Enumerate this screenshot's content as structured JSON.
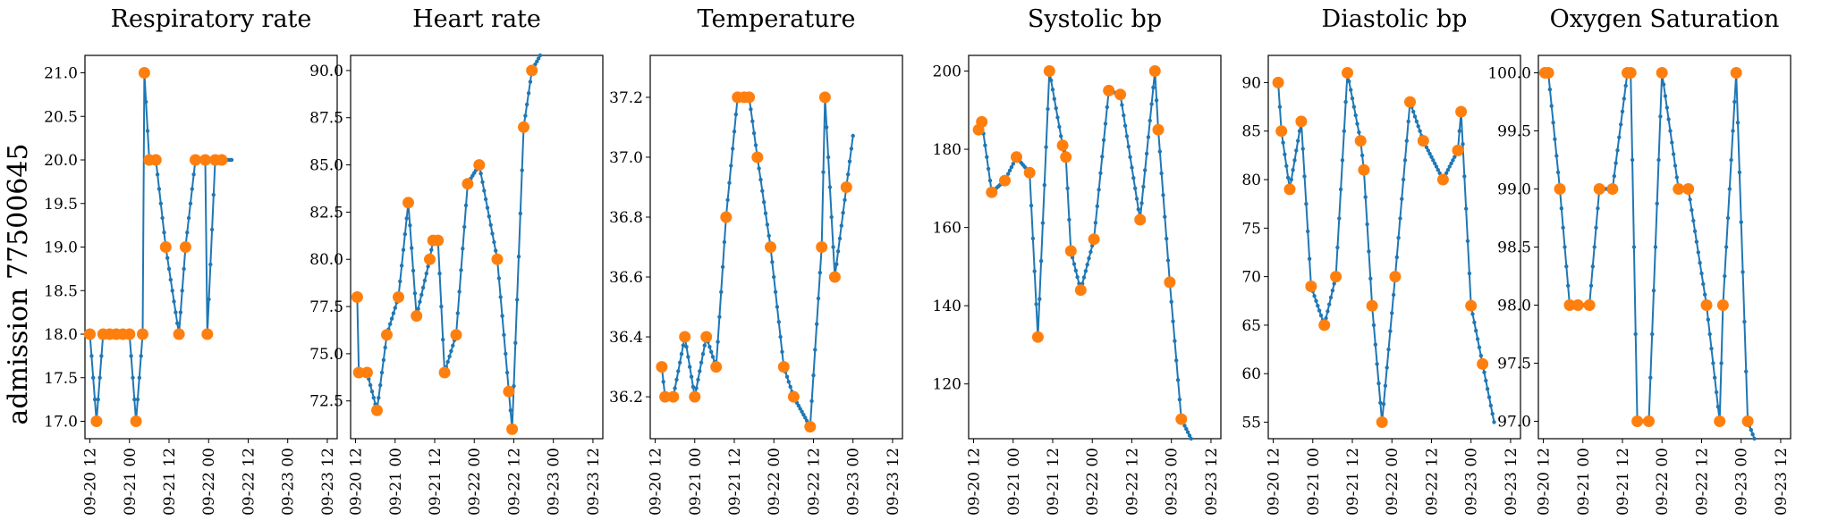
{
  "figure": {
    "row_label": "admission 77500645"
  },
  "style": {
    "line_color": "#1f77b4",
    "marker_color": "#ff7f0e"
  },
  "chart_data": [
    {
      "type": "line",
      "title": "Respiratory rate",
      "x_tick_labels": [
        "09-20 12",
        "09-21 00",
        "09-21 12",
        "09-22 00",
        "09-22 12",
        "09-23 00",
        "09-23 12"
      ],
      "x_range_hours": [
        -1.5,
        75
      ],
      "ylim": [
        16.8,
        21.2
      ],
      "y_ticks": [
        17.0,
        17.5,
        18.0,
        18.5,
        19.0,
        19.5,
        20.0,
        20.5,
        21.0
      ],
      "y_tick_labels": [
        "17.0",
        "17.5",
        "18.0",
        "18.5",
        "19.0",
        "19.5",
        "20.0",
        "20.5",
        "21.0"
      ],
      "observations": [
        [
          0,
          18
        ],
        [
          2,
          17
        ],
        [
          4,
          18
        ],
        [
          6,
          18
        ],
        [
          8,
          18
        ],
        [
          10,
          18
        ],
        [
          12,
          18
        ],
        [
          14,
          17
        ],
        [
          16,
          18
        ],
        [
          16.5,
          21
        ],
        [
          18,
          20
        ],
        [
          20,
          20
        ],
        [
          23,
          19
        ],
        [
          27,
          18
        ],
        [
          29,
          19
        ],
        [
          32,
          20
        ],
        [
          35,
          20
        ],
        [
          35.6,
          18
        ],
        [
          38,
          20
        ],
        [
          40,
          20
        ]
      ],
      "line_end_hour": 43
    },
    {
      "type": "line",
      "title": "Heart rate",
      "x_tick_labels": [
        "09-20 12",
        "09-21 00",
        "09-21 12",
        "09-22 00",
        "09-22 12",
        "09-23 00",
        "09-23 12"
      ],
      "x_range_hours": [
        -1.5,
        75
      ],
      "ylim": [
        70.5,
        90.8
      ],
      "y_ticks": [
        72.5,
        75.0,
        77.5,
        80.0,
        82.5,
        85.0,
        87.5,
        90.0
      ],
      "y_tick_labels": [
        "72.5",
        "75.0",
        "77.5",
        "80.0",
        "82.5",
        "85.0",
        "87.5",
        "90.0"
      ],
      "observations": [
        [
          0.5,
          78
        ],
        [
          1,
          74
        ],
        [
          3.5,
          74
        ],
        [
          6.5,
          72
        ],
        [
          9.5,
          76
        ],
        [
          13,
          78
        ],
        [
          16,
          83
        ],
        [
          18.5,
          77
        ],
        [
          22.5,
          80
        ],
        [
          23.5,
          81
        ],
        [
          25,
          81
        ],
        [
          27,
          74
        ],
        [
          30.5,
          76
        ],
        [
          34,
          84
        ],
        [
          37.5,
          85
        ],
        [
          43,
          80
        ],
        [
          46.5,
          73
        ],
        [
          47.5,
          71
        ],
        [
          51,
          87
        ],
        [
          53.5,
          90
        ]
      ],
      "line_end_hour": 56
    },
    {
      "type": "line",
      "title": "Temperature",
      "x_tick_labels": [
        "09-20 12",
        "09-21 00",
        "09-21 12",
        "09-22 00",
        "09-22 12",
        "09-23 00",
        "09-23 12"
      ],
      "x_range_hours": [
        -1.5,
        75
      ],
      "ylim": [
        36.06,
        37.34
      ],
      "y_ticks": [
        36.2,
        36.4,
        36.6,
        36.8,
        37.0,
        37.2
      ],
      "y_tick_labels": [
        "36.2",
        "36.4",
        "36.6",
        "36.8",
        "37.0",
        "37.2"
      ],
      "observations": [
        [
          2,
          36.3
        ],
        [
          3,
          36.2
        ],
        [
          5.5,
          36.2
        ],
        [
          9,
          36.4
        ],
        [
          12,
          36.2
        ],
        [
          15.5,
          36.4
        ],
        [
          18.5,
          36.3
        ],
        [
          21.5,
          36.8
        ],
        [
          25,
          37.2
        ],
        [
          27,
          37.2
        ],
        [
          28.5,
          37.2
        ],
        [
          31,
          37.0
        ],
        [
          35,
          36.7
        ],
        [
          39,
          36.3
        ],
        [
          42,
          36.2
        ],
        [
          47,
          36.1
        ],
        [
          50.5,
          36.7
        ],
        [
          51.5,
          37.2
        ],
        [
          54.5,
          36.6
        ],
        [
          58,
          36.9
        ]
      ],
      "line_end_hour": 60
    },
    {
      "type": "line",
      "title": "Systolic bp",
      "x_tick_labels": [
        "09-20 12",
        "09-21 00",
        "09-21 12",
        "09-22 00",
        "09-22 12",
        "09-23 00",
        "09-23 12"
      ],
      "x_range_hours": [
        -1.5,
        75
      ],
      "ylim": [
        106,
        204
      ],
      "y_ticks": [
        120,
        140,
        160,
        180,
        200
      ],
      "y_tick_labels": [
        "120",
        "140",
        "160",
        "180",
        "200"
      ],
      "observations": [
        [
          1.5,
          185
        ],
        [
          2.5,
          187
        ],
        [
          5.5,
          169
        ],
        [
          9.5,
          172
        ],
        [
          13,
          178
        ],
        [
          17,
          174
        ],
        [
          19.5,
          132
        ],
        [
          23,
          200
        ],
        [
          27,
          181
        ],
        [
          28,
          178
        ],
        [
          29.5,
          154
        ],
        [
          32.5,
          144
        ],
        [
          36.5,
          157
        ],
        [
          41,
          195
        ],
        [
          44.5,
          194
        ],
        [
          50.5,
          162
        ],
        [
          55,
          200
        ],
        [
          56,
          185
        ],
        [
          59.5,
          146
        ],
        [
          63,
          111
        ]
      ],
      "line_end_hour": 66
    },
    {
      "type": "line",
      "title": "Diastolic bp",
      "x_tick_labels": [
        "09-20 12",
        "09-21 00",
        "09-21 12",
        "09-22 00",
        "09-22 12",
        "09-23 00",
        "09-23 12"
      ],
      "x_range_hours": [
        -1.5,
        75
      ],
      "ylim": [
        53.3,
        92.8
      ],
      "y_ticks": [
        55,
        60,
        65,
        70,
        75,
        80,
        85,
        90
      ],
      "y_tick_labels": [
        "55",
        "60",
        "65",
        "70",
        "75",
        "80",
        "85",
        "90"
      ],
      "observations": [
        [
          1.5,
          90
        ],
        [
          2.5,
          85
        ],
        [
          5,
          79
        ],
        [
          8.5,
          86
        ],
        [
          11.5,
          69
        ],
        [
          15.5,
          65
        ],
        [
          19,
          70
        ],
        [
          22.5,
          91
        ],
        [
          26.5,
          84
        ],
        [
          27.5,
          81
        ],
        [
          30,
          67
        ],
        [
          33,
          55
        ],
        [
          37,
          70
        ],
        [
          41.5,
          88
        ],
        [
          45.5,
          84
        ],
        [
          51.5,
          80
        ],
        [
          56,
          83
        ],
        [
          57,
          87
        ],
        [
          60,
          67
        ],
        [
          63.5,
          61
        ]
      ],
      "line_end_hour": 67
    },
    {
      "type": "line",
      "title": "Oxygen Saturation",
      "x_tick_labels": [
        "09-20 12",
        "09-21 00",
        "09-21 12",
        "09-22 00",
        "09-22 12",
        "09-23 00",
        "09-23 12"
      ],
      "x_range_hours": [
        -1.5,
        75
      ],
      "ylim": [
        96.85,
        100.15
      ],
      "y_ticks": [
        97.0,
        97.5,
        98.0,
        98.5,
        99.0,
        99.5,
        100.0
      ],
      "y_tick_labels": [
        "97.0",
        "97.5",
        "98.0",
        "98.5",
        "99.0",
        "99.5",
        "100.0"
      ],
      "observations": [
        [
          0.5,
          100
        ],
        [
          1.5,
          100
        ],
        [
          5,
          99
        ],
        [
          8,
          98
        ],
        [
          10.5,
          98
        ],
        [
          14,
          98
        ],
        [
          17,
          99
        ],
        [
          21,
          99
        ],
        [
          25.5,
          100
        ],
        [
          26.5,
          100
        ],
        [
          28.5,
          97
        ],
        [
          32,
          97
        ],
        [
          36,
          100
        ],
        [
          41,
          99
        ],
        [
          44,
          99
        ],
        [
          49.5,
          98
        ],
        [
          53.5,
          97
        ],
        [
          54.5,
          98
        ],
        [
          58.5,
          100
        ],
        [
          62,
          97
        ]
      ],
      "line_end_hour": 64
    }
  ]
}
